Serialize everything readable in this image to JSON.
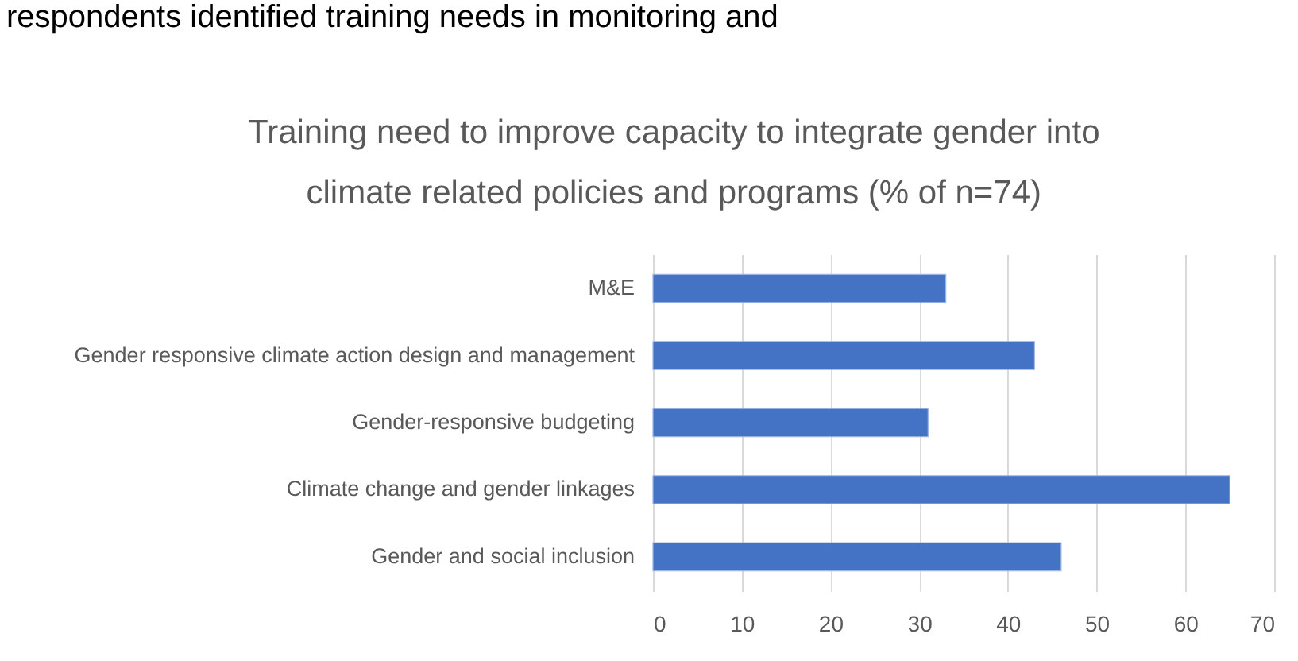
{
  "chart_data": {
    "type": "bar",
    "orientation": "horizontal",
    "title": [
      "Training need to improve capacity to integrate gender into",
      "climate related policies and programs (% of n=74)"
    ],
    "annotations": [
      "respondents identified training needs in monitoring and"
    ],
    "categories": [
      "M&E",
      "Gender responsive climate action design and management",
      "Gender-responsive budgeting",
      "Climate change and gender linkages",
      "Gender and social inclusion"
    ],
    "values": [
      33,
      43,
      31,
      65,
      46
    ],
    "color": "#4472c4",
    "xlim": [
      0,
      70
    ],
    "xticks": [
      0,
      10,
      20,
      30,
      40,
      50,
      60,
      70
    ],
    "grid": "x"
  }
}
